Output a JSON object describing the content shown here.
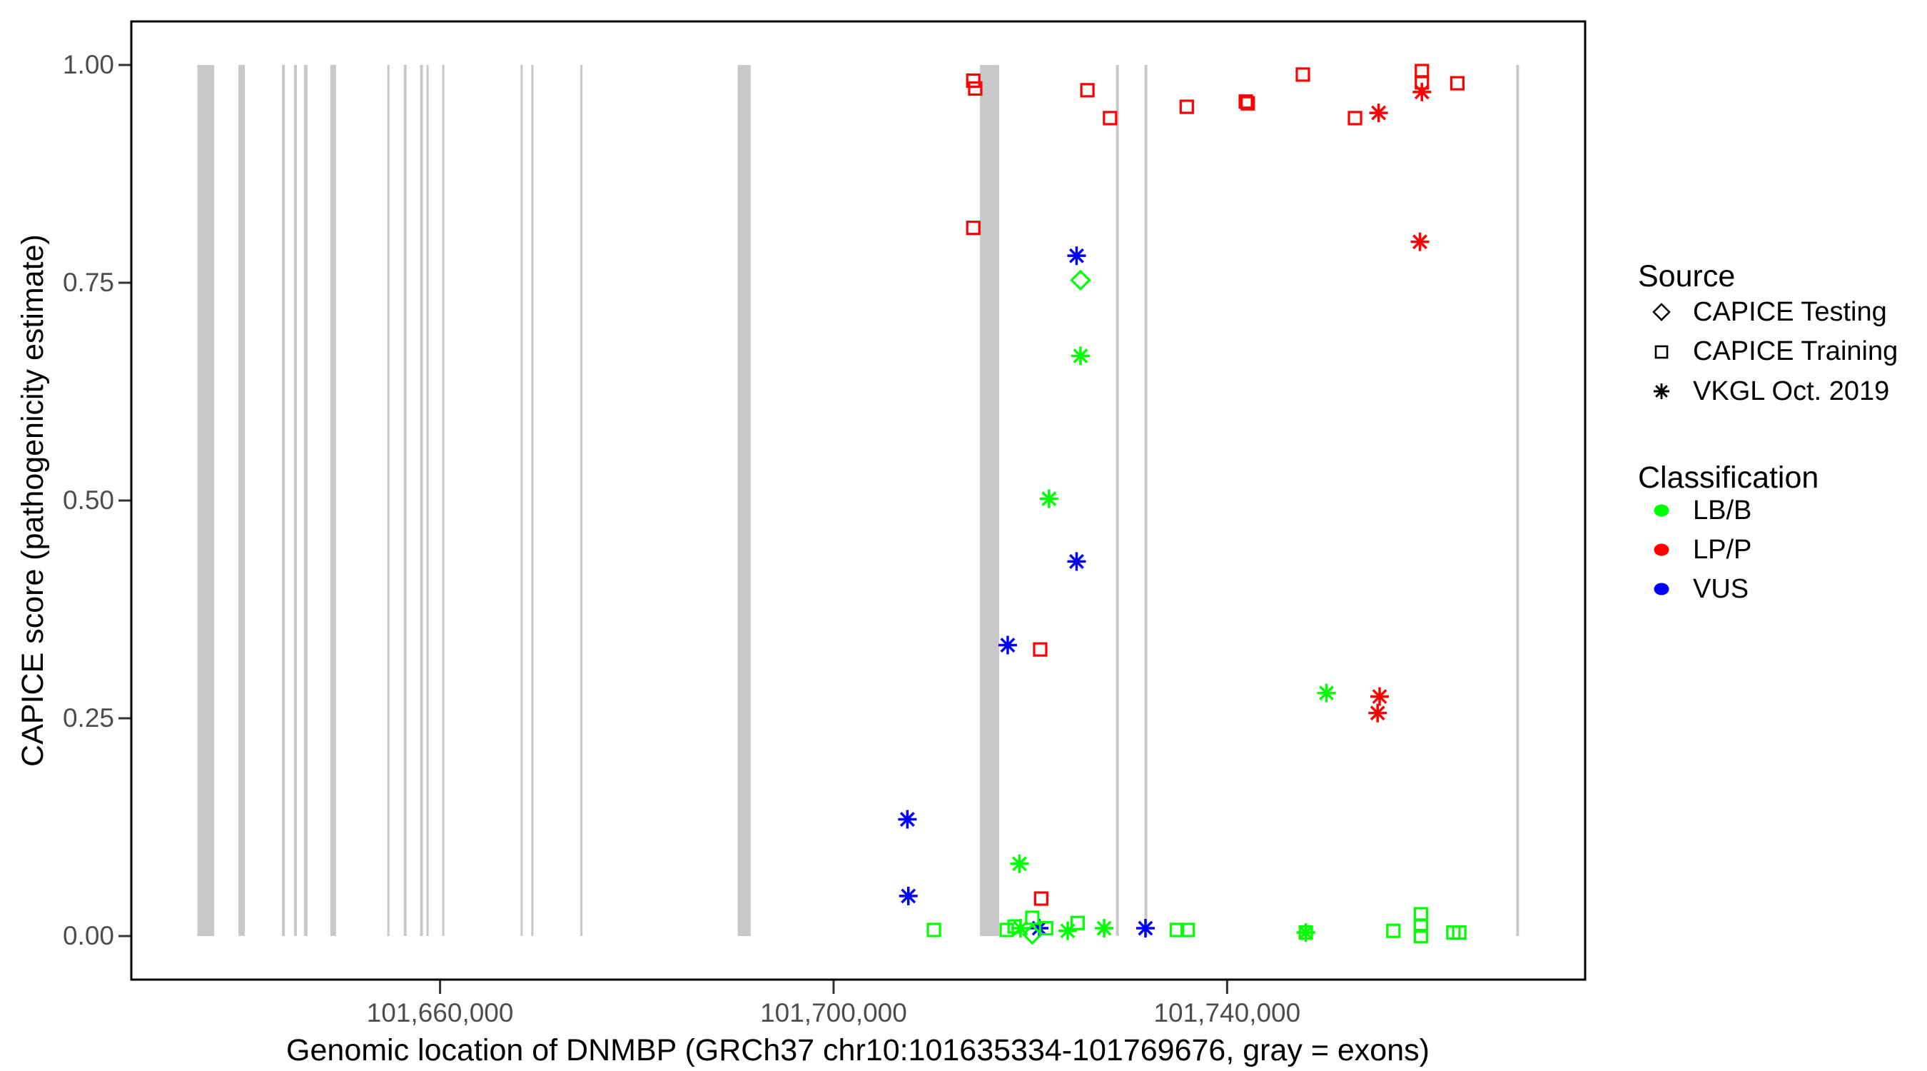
{
  "y_axis": {
    "title": "CAPICE score (pathogenicity estimate)",
    "tick_labels": [
      "1.00",
      "0.75",
      "0.50",
      "0.25",
      "0.00"
    ],
    "tick_values": [
      1.0,
      0.75,
      0.5,
      0.25,
      0.0
    ]
  },
  "x_axis": {
    "title": "Genomic location of DNMBP (GRCh37 chr10:101635334-101769676, gray = exons)",
    "tick_labels": [
      "101,660,000",
      "101,700,000",
      "101,740,000"
    ],
    "tick_values": [
      101660000,
      101700000,
      101740000
    ]
  },
  "legend": {
    "source": {
      "title": "Source",
      "items": [
        {
          "label": "CAPICE Testing",
          "shape": "diamond"
        },
        {
          "label": "CAPICE Training",
          "shape": "square"
        },
        {
          "label": "VKGL Oct. 2019",
          "shape": "asterisk"
        }
      ]
    },
    "classification": {
      "title": "Classification",
      "items": [
        {
          "label": "LB/B",
          "color": "#00FF00"
        },
        {
          "label": "LP/P",
          "color": "#FF0000"
        },
        {
          "label": "VUS",
          "color": "#0000FF"
        }
      ]
    }
  },
  "colors": {
    "LB/B": "#00FF00",
    "LP/P": "#FF0000",
    "VUS": "#0000FF",
    "exon": "#C8C8C8",
    "panel_border": "#000000",
    "tick_text": "#4d4d4d"
  },
  "chart_data": {
    "type": "scatter",
    "title": "",
    "xlabel": "Genomic location of DNMBP (GRCh37 chr10:101635334-101769676, gray = exons)",
    "ylabel": "CAPICE score (pathogenicity estimate)",
    "xlim": [
      101628617,
      101776393
    ],
    "ylim": [
      -0.05,
      1.05
    ],
    "x_ticks": [
      101660000,
      101700000,
      101740000
    ],
    "y_ticks": [
      0.0,
      0.25,
      0.5,
      0.75,
      1.0
    ],
    "grid": false,
    "legend_position": "right",
    "shape_by_source": {
      "CAPICE Testing": "diamond",
      "CAPICE Training": "square",
      "VKGL Oct. 2019": "asterisk"
    },
    "exons": [
      [
        101635334,
        101637050
      ],
      [
        101639500,
        101640160
      ],
      [
        101643930,
        101644220
      ],
      [
        101645160,
        101645450
      ],
      [
        101646170,
        101646530
      ],
      [
        101648850,
        101649430
      ],
      [
        101654640,
        101654860
      ],
      [
        101656310,
        101656600
      ],
      [
        101657970,
        101658260
      ],
      [
        101658620,
        101658840
      ],
      [
        101660220,
        101660430
      ],
      [
        101668180,
        101668400
      ],
      [
        101669270,
        101669480
      ],
      [
        101674260,
        101674410
      ],
      [
        101690260,
        101691570
      ],
      [
        101714880,
        101716830
      ],
      [
        101728700,
        101729000
      ],
      [
        101731600,
        101731890
      ],
      [
        101769390,
        101769676
      ]
    ],
    "points": [
      {
        "x": 101714200,
        "y": 0.982,
        "cls": "LP/P",
        "src": "CAPICE Training"
      },
      {
        "x": 101714400,
        "y": 0.973,
        "cls": "LP/P",
        "src": "CAPICE Training"
      },
      {
        "x": 101714200,
        "y": 0.813,
        "cls": "LP/P",
        "src": "CAPICE Training"
      },
      {
        "x": 101721000,
        "y": 0.329,
        "cls": "LP/P",
        "src": "CAPICE Training"
      },
      {
        "x": 101721100,
        "y": 0.043,
        "cls": "LP/P",
        "src": "CAPICE Training"
      },
      {
        "x": 101725800,
        "y": 0.971,
        "cls": "LP/P",
        "src": "CAPICE Training"
      },
      {
        "x": 101728100,
        "y": 0.939,
        "cls": "LP/P",
        "src": "CAPICE Training"
      },
      {
        "x": 101735900,
        "y": 0.952,
        "cls": "LP/P",
        "src": "CAPICE Training"
      },
      {
        "x": 101741900,
        "y": 0.958,
        "cls": "LP/P",
        "src": "CAPICE Training"
      },
      {
        "x": 101742100,
        "y": 0.956,
        "cls": "LP/P",
        "src": "CAPICE Training"
      },
      {
        "x": 101747700,
        "y": 0.989,
        "cls": "LP/P",
        "src": "CAPICE Training"
      },
      {
        "x": 101753000,
        "y": 0.939,
        "cls": "LP/P",
        "src": "CAPICE Training"
      },
      {
        "x": 101759800,
        "y": 0.993,
        "cls": "LP/P",
        "src": "CAPICE Training"
      },
      {
        "x": 101759800,
        "y": 0.98,
        "cls": "LP/P",
        "src": "CAPICE Training"
      },
      {
        "x": 101763400,
        "y": 0.979,
        "cls": "LP/P",
        "src": "CAPICE Training"
      },
      {
        "x": 101755400,
        "y": 0.945,
        "cls": "LP/P",
        "src": "VKGL Oct. 2019"
      },
      {
        "x": 101759800,
        "y": 0.969,
        "cls": "LP/P",
        "src": "VKGL Oct. 2019"
      },
      {
        "x": 101759600,
        "y": 0.797,
        "cls": "LP/P",
        "src": "VKGL Oct. 2019"
      },
      {
        "x": 101755500,
        "y": 0.275,
        "cls": "LP/P",
        "src": "VKGL Oct. 2019"
      },
      {
        "x": 101755300,
        "y": 0.256,
        "cls": "LP/P",
        "src": "VKGL Oct. 2019"
      },
      {
        "x": 101724700,
        "y": 0.781,
        "cls": "VUS",
        "src": "VKGL Oct. 2019"
      },
      {
        "x": 101724700,
        "y": 0.43,
        "cls": "VUS",
        "src": "VKGL Oct. 2019"
      },
      {
        "x": 101717700,
        "y": 0.334,
        "cls": "VUS",
        "src": "VKGL Oct. 2019"
      },
      {
        "x": 101707500,
        "y": 0.134,
        "cls": "VUS",
        "src": "VKGL Oct. 2019"
      },
      {
        "x": 101707600,
        "y": 0.046,
        "cls": "VUS",
        "src": "VKGL Oct. 2019"
      },
      {
        "x": 101720900,
        "y": 0.009,
        "cls": "VUS",
        "src": "VKGL Oct. 2019"
      },
      {
        "x": 101731700,
        "y": 0.009,
        "cls": "VUS",
        "src": "VKGL Oct. 2019"
      },
      {
        "x": 101725100,
        "y": 0.753,
        "cls": "LB/B",
        "src": "CAPICE Testing"
      },
      {
        "x": 101720200,
        "y": 0.002,
        "cls": "LB/B",
        "src": "CAPICE Testing"
      },
      {
        "x": 101725100,
        "y": 0.666,
        "cls": "LB/B",
        "src": "VKGL Oct. 2019"
      },
      {
        "x": 101721900,
        "y": 0.502,
        "cls": "LB/B",
        "src": "VKGL Oct. 2019"
      },
      {
        "x": 101718900,
        "y": 0.083,
        "cls": "LB/B",
        "src": "VKGL Oct. 2019"
      },
      {
        "x": 101719000,
        "y": 0.009,
        "cls": "LB/B",
        "src": "VKGL Oct. 2019"
      },
      {
        "x": 101723800,
        "y": 0.006,
        "cls": "LB/B",
        "src": "VKGL Oct. 2019"
      },
      {
        "x": 101727500,
        "y": 0.009,
        "cls": "LB/B",
        "src": "VKGL Oct. 2019"
      },
      {
        "x": 101750100,
        "y": 0.279,
        "cls": "LB/B",
        "src": "VKGL Oct. 2019"
      },
      {
        "x": 101748000,
        "y": 0.004,
        "cls": "LB/B",
        "src": "VKGL Oct. 2019"
      },
      {
        "x": 101710200,
        "y": 0.007,
        "cls": "LB/B",
        "src": "CAPICE Training"
      },
      {
        "x": 101717600,
        "y": 0.007,
        "cls": "LB/B",
        "src": "CAPICE Training"
      },
      {
        "x": 101718400,
        "y": 0.011,
        "cls": "LB/B",
        "src": "CAPICE Training"
      },
      {
        "x": 101720200,
        "y": 0.021,
        "cls": "LB/B",
        "src": "CAPICE Training"
      },
      {
        "x": 101721600,
        "y": 0.009,
        "cls": "LB/B",
        "src": "CAPICE Training"
      },
      {
        "x": 101724800,
        "y": 0.015,
        "cls": "LB/B",
        "src": "CAPICE Training"
      },
      {
        "x": 101734900,
        "y": 0.007,
        "cls": "LB/B",
        "src": "CAPICE Training"
      },
      {
        "x": 101736000,
        "y": 0.007,
        "cls": "LB/B",
        "src": "CAPICE Training"
      },
      {
        "x": 101748000,
        "y": 0.004,
        "cls": "LB/B",
        "src": "CAPICE Training"
      },
      {
        "x": 101756900,
        "y": 0.006,
        "cls": "LB/B",
        "src": "CAPICE Training"
      },
      {
        "x": 101759700,
        "y": 0.025,
        "cls": "LB/B",
        "src": "CAPICE Training"
      },
      {
        "x": 101759700,
        "y": 0.012,
        "cls": "LB/B",
        "src": "CAPICE Training"
      },
      {
        "x": 101759700,
        "y": 0.0,
        "cls": "LB/B",
        "src": "CAPICE Training"
      },
      {
        "x": 101763000,
        "y": 0.004,
        "cls": "LB/B",
        "src": "CAPICE Training"
      },
      {
        "x": 101763600,
        "y": 0.004,
        "cls": "LB/B",
        "src": "CAPICE Training"
      }
    ]
  }
}
